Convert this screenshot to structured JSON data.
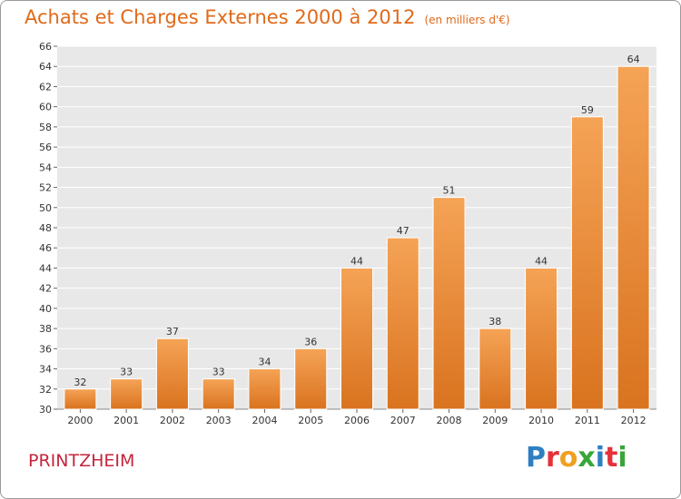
{
  "title": "Achats et Charges Externes 2000 à 2012",
  "title_unit": "(en milliers d'€)",
  "location": "PRINTZHEIM",
  "brand": {
    "text": "Proxiti",
    "letters": [
      "P",
      "r",
      "o",
      "x",
      "i",
      "t",
      "i"
    ],
    "colors": [
      "#2e7fc2",
      "#e5313a",
      "#f0a020",
      "#3aa53a",
      "#2e7fc2",
      "#e5313a",
      "#3aa53a"
    ]
  },
  "chart_data": {
    "type": "bar",
    "categories": [
      "2000",
      "2001",
      "2002",
      "2003",
      "2004",
      "2005",
      "2006",
      "2007",
      "2008",
      "2009",
      "2010",
      "2011",
      "2012"
    ],
    "values": [
      32,
      33,
      37,
      33,
      34,
      36,
      44,
      47,
      51,
      38,
      44,
      59,
      64
    ],
    "ylim": [
      30,
      66
    ],
    "yticks": [
      30,
      32,
      34,
      36,
      38,
      40,
      42,
      44,
      46,
      48,
      50,
      52,
      54,
      56,
      58,
      60,
      62,
      64,
      66
    ],
    "grid": true,
    "bar_color_top": "#f5a356",
    "bar_color_bottom": "#d9731f",
    "plot_background": "#e8e8e8"
  }
}
